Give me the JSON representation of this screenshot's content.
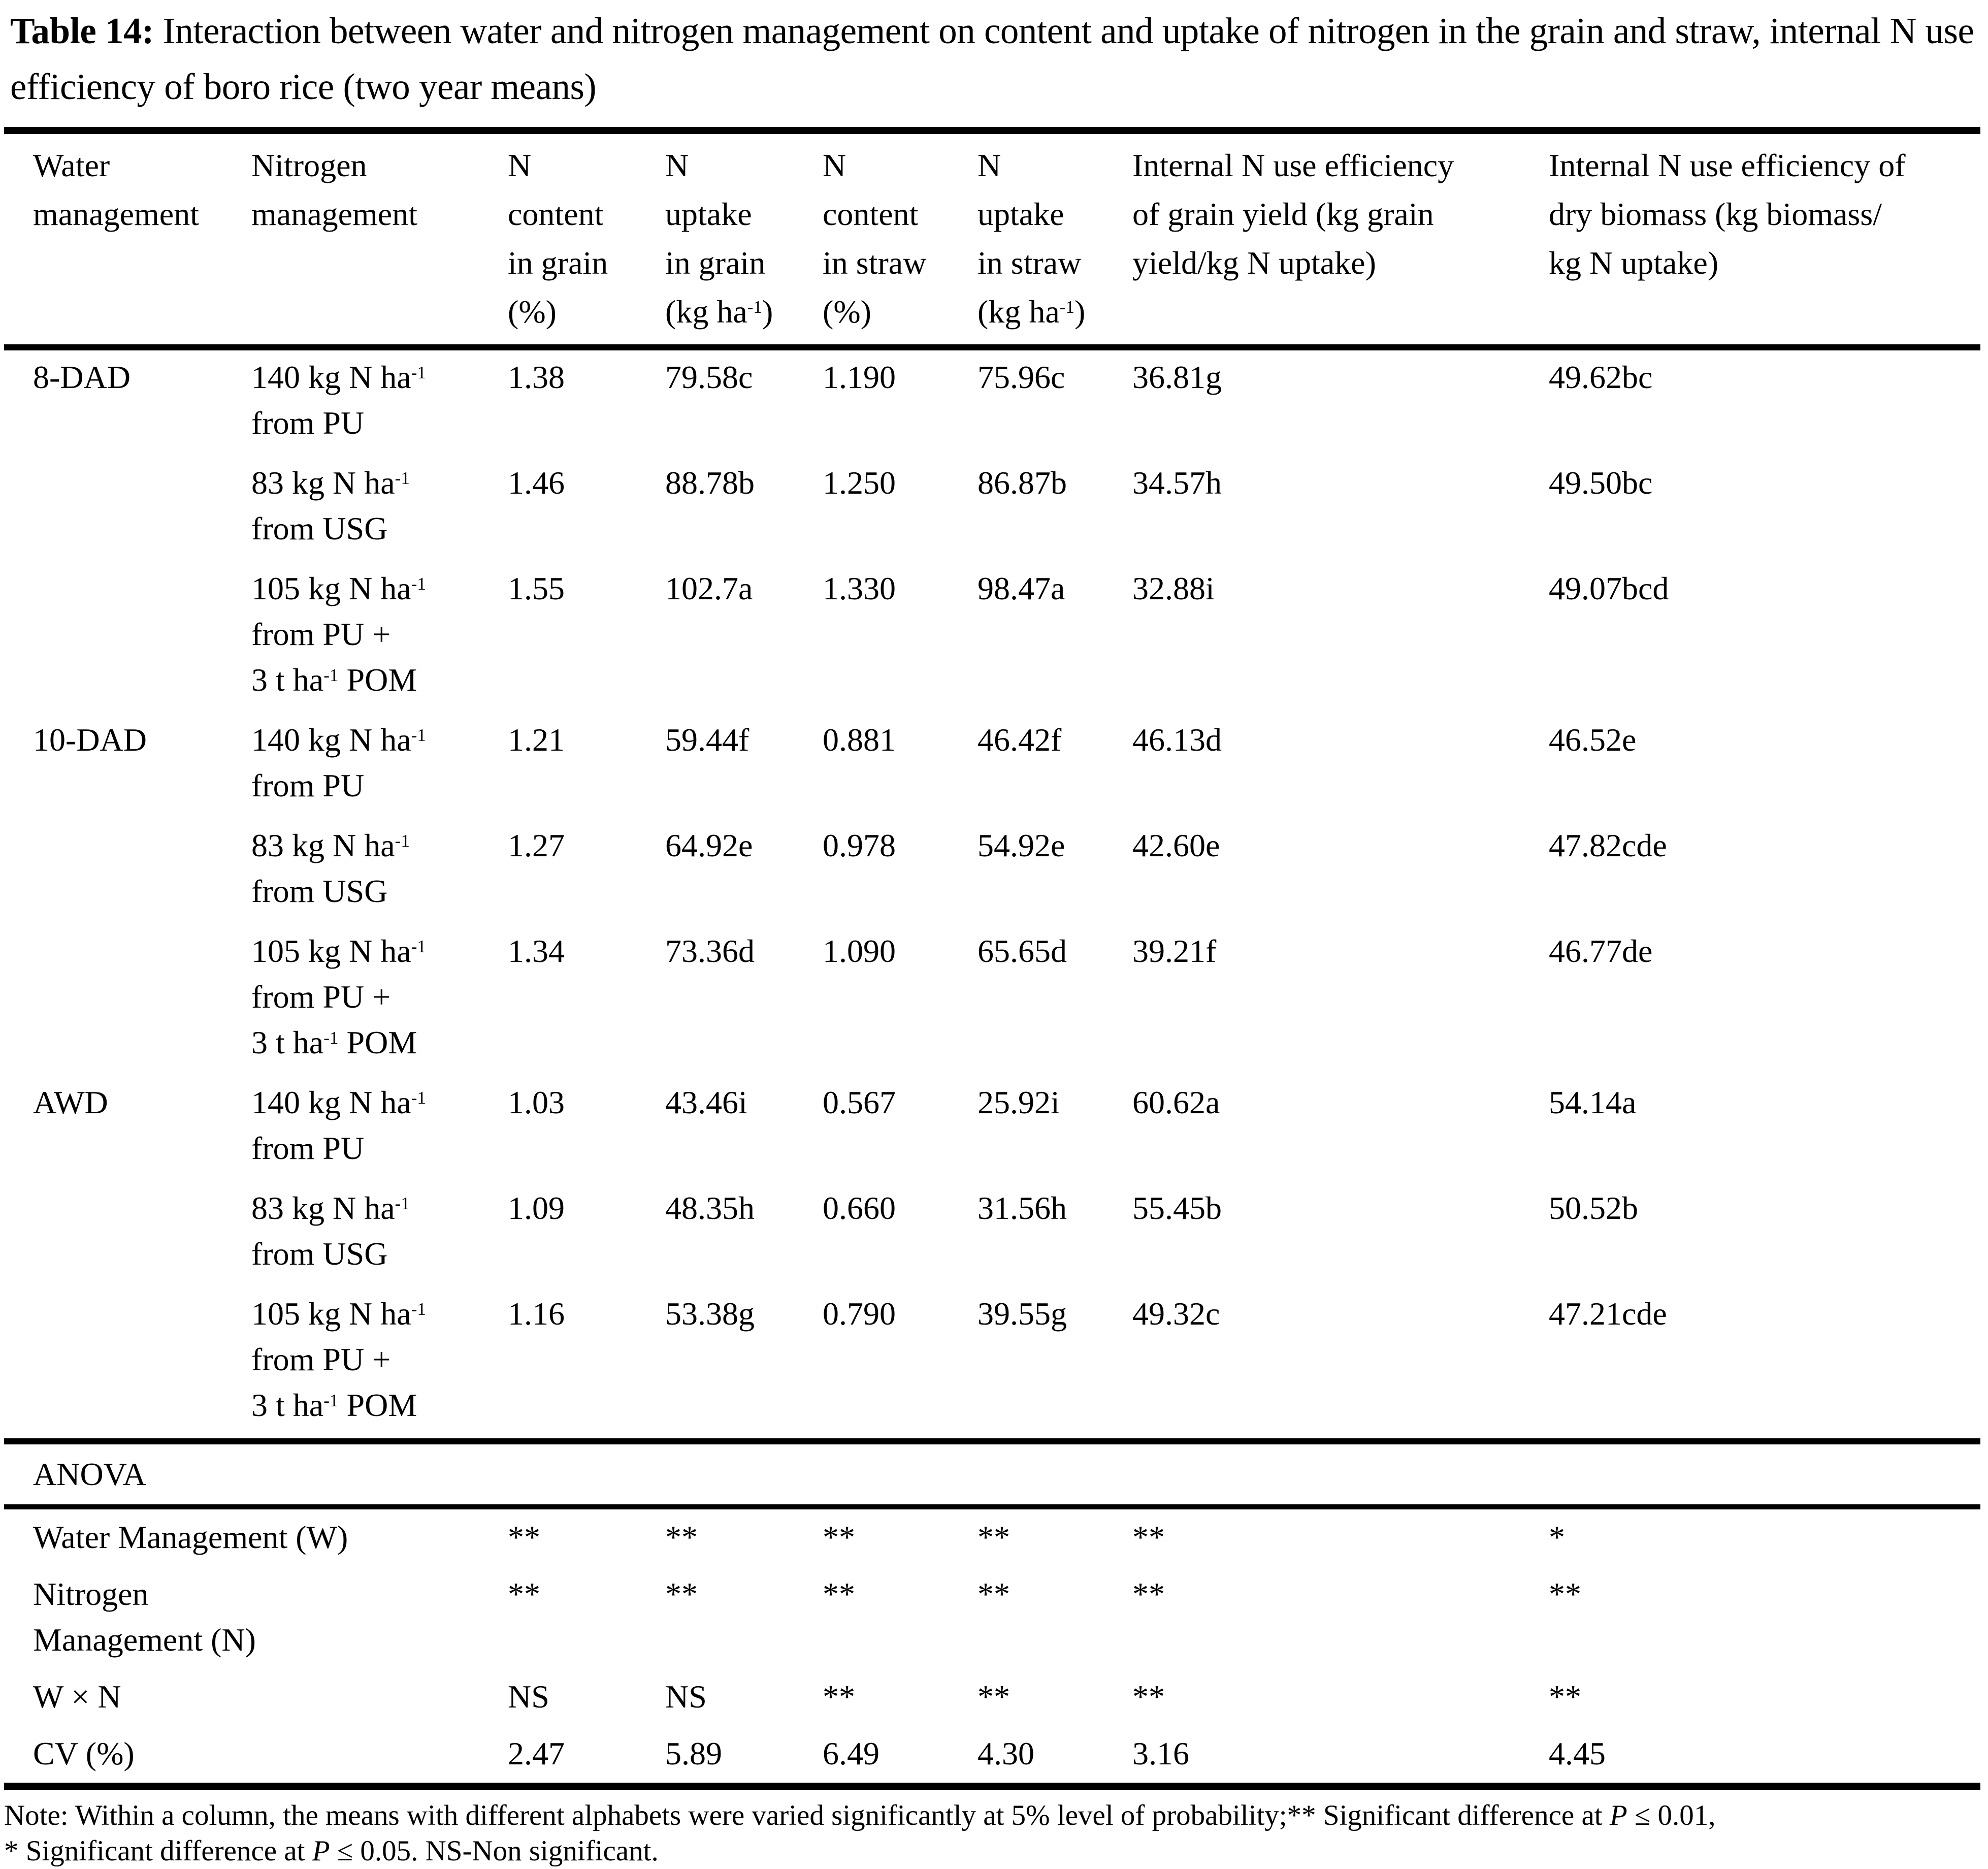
{
  "title": {
    "label": "Table 14:",
    "text": "Interaction between water and nitrogen management on content and uptake of nitrogen in the grain and straw, internal N use efficiency of boro rice (two year means)"
  },
  "table": {
    "columns": [
      "Water\nmanagement",
      "Nitrogen\nmanagement",
      "N\ncontent\nin grain\n(%)",
      "N\nuptake\nin grain\n(kg ha^-1)",
      "N\ncontent\nin straw\n(%)",
      "N\nuptake\nin straw\n(kg ha^-1)",
      "Internal N use efficiency\nof grain yield (kg grain\nyield/kg N uptake)",
      "Internal N use efficiency of\ndry biomass (kg biomass/\nkg N uptake)"
    ],
    "rows": [
      {
        "water": "8-DAD",
        "nitrogen": "140 kg N ha^-1\nfrom PU",
        "values": [
          "1.38",
          "79.58c",
          "1.190",
          "75.96c",
          "36.81g",
          "49.62bc"
        ]
      },
      {
        "water": "",
        "nitrogen": "83 kg N ha^-1\nfrom USG",
        "values": [
          "1.46",
          "88.78b",
          "1.250",
          "86.87b",
          "34.57h",
          "49.50bc"
        ]
      },
      {
        "water": "",
        "nitrogen": "105 kg N ha^-1\nfrom PU +\n3 t ha^-1 POM",
        "values": [
          "1.55",
          "102.7a",
          "1.330",
          "98.47a",
          "32.88i",
          "49.07bcd"
        ]
      },
      {
        "water": "10-DAD",
        "nitrogen": "140 kg N ha^-1\nfrom PU",
        "values": [
          "1.21",
          "59.44f",
          "0.881",
          "46.42f",
          "46.13d",
          "46.52e"
        ]
      },
      {
        "water": "",
        "nitrogen": "83 kg N ha^-1\nfrom USG",
        "values": [
          "1.27",
          "64.92e",
          "0.978",
          "54.92e",
          "42.60e",
          "47.82cde"
        ]
      },
      {
        "water": "",
        "nitrogen": "105 kg N ha^-1\nfrom PU +\n3 t ha^-1 POM",
        "values": [
          "1.34",
          "73.36d",
          "1.090",
          "65.65d",
          "39.21f",
          "46.77de"
        ]
      },
      {
        "water": "AWD",
        "nitrogen": "140 kg N ha^-1\nfrom PU",
        "values": [
          "1.03",
          "43.46i",
          "0.567",
          "25.92i",
          "60.62a",
          "54.14a"
        ]
      },
      {
        "water": "",
        "nitrogen": "83 kg N ha^-1\nfrom USG",
        "values": [
          "1.09",
          "48.35h",
          "0.660",
          "31.56h",
          "55.45b",
          "50.52b"
        ]
      },
      {
        "water": "",
        "nitrogen": "105 kg N ha^-1\nfrom PU +\n3 t ha^-1 POM",
        "values": [
          "1.16",
          "53.38g",
          "0.790",
          "39.55g",
          "49.32c",
          "47.21cde"
        ]
      }
    ]
  },
  "anova": {
    "label": "ANOVA",
    "rows": [
      {
        "label": "Water Management (W)",
        "values": [
          "**",
          "**",
          "**",
          "**",
          "**",
          "*"
        ]
      },
      {
        "label": "Nitrogen\nManagement (N)",
        "values": [
          "**",
          "**",
          "**",
          "**",
          "**",
          "**"
        ]
      },
      {
        "label": "W × N",
        "values": [
          "NS",
          "NS",
          "**",
          "**",
          "**",
          "**"
        ]
      },
      {
        "label": "CV (%)",
        "values": [
          "2.47",
          "5.89",
          "6.49",
          "4.30",
          "3.16",
          "4.45"
        ]
      }
    ]
  },
  "note": {
    "line1": "Note: Within a column, the means with different alphabets were varied significantly at 5% level of probability;** Significant difference at _P_ ≤ 0.01,",
    "line2": "* Significant difference at _P_ ≤ 0.05. NS-Non significant."
  }
}
